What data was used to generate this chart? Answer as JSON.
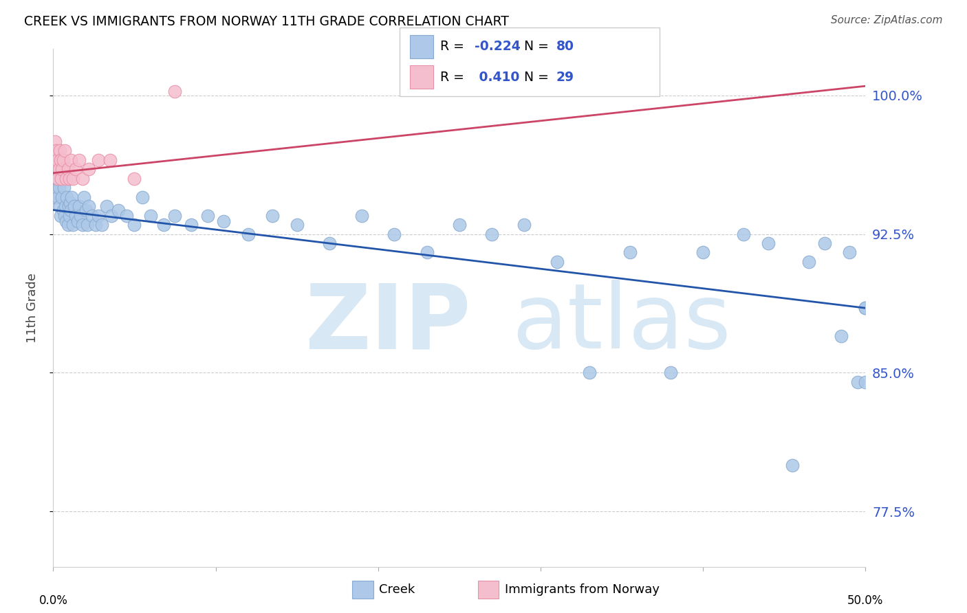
{
  "title": "CREEK VS IMMIGRANTS FROM NORWAY 11TH GRADE CORRELATION CHART",
  "source": "Source: ZipAtlas.com",
  "ylabel": "11th Grade",
  "xlim": [
    0.0,
    50.0
  ],
  "ylim": [
    74.5,
    102.5
  ],
  "yticks": [
    77.5,
    85.0,
    92.5,
    100.0
  ],
  "ytick_labels": [
    "77.5%",
    "85.0%",
    "92.5%",
    "100.0%"
  ],
  "creek_R": -0.224,
  "creek_N": 80,
  "norway_R": 0.41,
  "norway_N": 29,
  "creek_color": "#adc8e8",
  "creek_edge_color": "#88aad0",
  "norway_color": "#f5bece",
  "norway_edge_color": "#e890a8",
  "creek_line_color": "#2255aa",
  "norway_line_color": "#cc4466",
  "right_label_color": "#3355cc",
  "background_color": "#ffffff",
  "watermark_color": "#d8e8f5",
  "creek_x": [
    0.08,
    0.1,
    0.12,
    0.15,
    0.18,
    0.2,
    0.22,
    0.25,
    0.28,
    0.3,
    0.35,
    0.4,
    0.45,
    0.5,
    0.55,
    0.6,
    0.65,
    0.7,
    0.75,
    0.8,
    0.85,
    0.9,
    0.95,
    1.0,
    1.05,
    1.1,
    1.15,
    1.2,
    1.3,
    1.4,
    1.5,
    1.6,
    1.7,
    1.8,
    1.9,
    2.0,
    2.1,
    2.2,
    2.4,
    2.6,
    2.8,
    3.0,
    3.3,
    3.6,
    4.0,
    4.5,
    5.0,
    5.5,
    6.0,
    6.8,
    7.5,
    8.5,
    9.5,
    10.5,
    12.0,
    13.5,
    15.0,
    17.0,
    19.0,
    21.0,
    23.0,
    25.0,
    27.0,
    29.0,
    31.0,
    33.0,
    35.5,
    38.0,
    40.0,
    42.5,
    44.0,
    45.5,
    46.5,
    47.5,
    48.5,
    49.0,
    49.5,
    50.0,
    50.0,
    50.0
  ],
  "creek_y": [
    94.5,
    95.0,
    96.2,
    96.8,
    97.0,
    95.5,
    94.8,
    95.5,
    96.0,
    94.5,
    95.0,
    94.0,
    93.5,
    96.5,
    94.5,
    93.8,
    95.0,
    93.5,
    94.0,
    93.2,
    94.5,
    93.0,
    94.0,
    93.5,
    94.2,
    93.8,
    94.5,
    93.0,
    94.0,
    93.5,
    93.2,
    94.0,
    93.5,
    93.0,
    94.5,
    93.8,
    93.0,
    94.0,
    93.5,
    93.0,
    93.5,
    93.0,
    94.0,
    93.5,
    93.8,
    93.5,
    93.0,
    94.5,
    93.5,
    93.0,
    93.5,
    93.0,
    93.5,
    93.2,
    92.5,
    93.5,
    93.0,
    92.0,
    93.5,
    92.5,
    91.5,
    93.0,
    92.5,
    93.0,
    91.0,
    85.0,
    91.5,
    85.0,
    91.5,
    92.5,
    92.0,
    80.0,
    91.0,
    92.0,
    87.0,
    91.5,
    84.5,
    88.5,
    84.5,
    88.5
  ],
  "norway_x": [
    0.05,
    0.08,
    0.1,
    0.12,
    0.15,
    0.18,
    0.2,
    0.25,
    0.3,
    0.35,
    0.4,
    0.45,
    0.5,
    0.55,
    0.6,
    0.7,
    0.8,
    0.9,
    1.0,
    1.1,
    1.2,
    1.4,
    1.6,
    1.8,
    2.2,
    2.8,
    3.5,
    5.0,
    7.5
  ],
  "norway_y": [
    96.5,
    97.0,
    97.5,
    96.8,
    96.5,
    97.0,
    96.0,
    96.5,
    95.5,
    96.0,
    97.0,
    96.5,
    95.5,
    96.0,
    96.5,
    97.0,
    95.5,
    96.0,
    95.5,
    96.5,
    95.5,
    96.0,
    96.5,
    95.5,
    96.0,
    96.5,
    96.5,
    95.5,
    100.2
  ],
  "creek_trend_x": [
    0.0,
    50.0
  ],
  "creek_trend_y": [
    93.8,
    88.5
  ],
  "norway_trend_x": [
    0.0,
    50.0
  ],
  "norway_trend_y": [
    95.8,
    100.5
  ]
}
